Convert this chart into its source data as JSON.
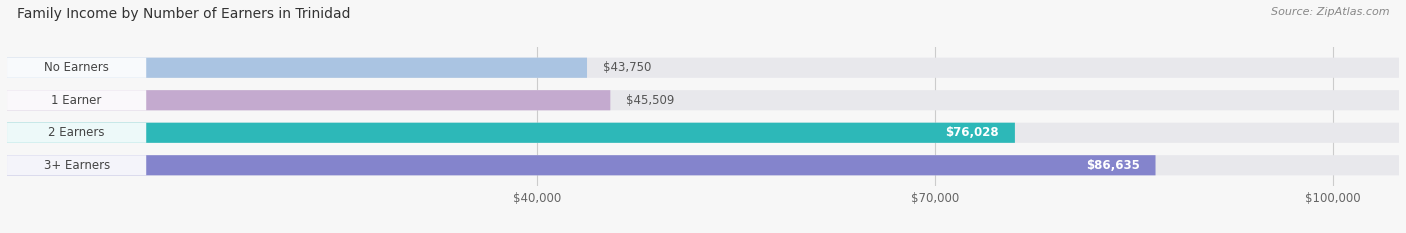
{
  "title": "Family Income by Number of Earners in Trinidad",
  "source": "Source: ZipAtlas.com",
  "categories": [
    "No Earners",
    "1 Earner",
    "2 Earners",
    "3+ Earners"
  ],
  "values": [
    43750,
    45509,
    76028,
    86635
  ],
  "bar_colors": [
    "#aac4e2",
    "#c4aacf",
    "#2db8b8",
    "#8484cc"
  ],
  "label_colors": [
    "#555555",
    "#555555",
    "#ffffff",
    "#ffffff"
  ],
  "bar_bg_color": "#e8e8ec",
  "xlim_min": 0,
  "xlim_max": 105000,
  "xticks": [
    40000,
    70000,
    100000
  ],
  "xtick_labels": [
    "$40,000",
    "$70,000",
    "$100,000"
  ],
  "value_labels": [
    "$43,750",
    "$45,509",
    "$76,028",
    "$86,635"
  ],
  "bar_height": 0.62,
  "background_color": "#f7f7f7",
  "title_fontsize": 10,
  "label_fontsize": 8.5,
  "value_fontsize": 8.5,
  "tick_fontsize": 8.5,
  "inside_threshold": 60000
}
